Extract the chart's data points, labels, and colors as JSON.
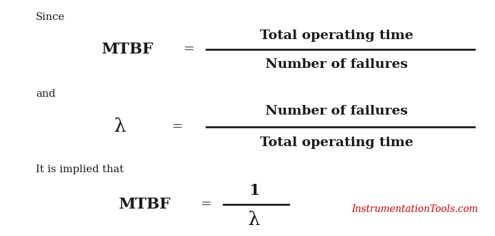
{
  "bg_color": "#ffffff",
  "text_color": "#1a1a1a",
  "red_color": "#cc0000",
  "since_text": "Since",
  "and_text": "and",
  "implied_text": "It is implied that",
  "watermark": "InstrumentationTools.com",
  "eq1_left": "MTBF",
  "eq1_eq": "=",
  "eq1_num": "Total operating time",
  "eq1_den": "Number of failures",
  "eq2_left": "λ",
  "eq2_eq": "=",
  "eq2_num": "Number of failures",
  "eq2_den": "Total operating time",
  "eq3_left": "MTBF",
  "eq3_eq": "=",
  "eq3_num": "1",
  "eq3_den": "λ",
  "figsize": [
    7.2,
    3.44
  ],
  "dpi": 100
}
